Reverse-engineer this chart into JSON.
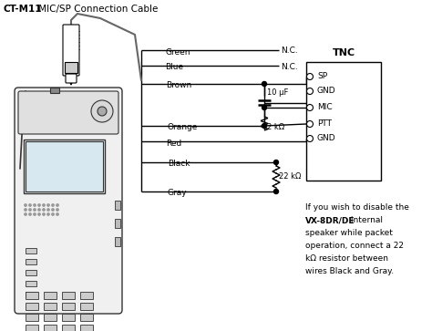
{
  "bg_color": "#ffffff",
  "line_color": "#000000",
  "text_color": "#000000",
  "title_bold": "CT-M11",
  "title_rest": " MIC/SP Connection Cable",
  "tnc_label": "TNC",
  "tnc_terminals": [
    "SP",
    "GND",
    "MIC",
    "PTT",
    "GND"
  ],
  "wire_labels": [
    "Green",
    "Blue",
    "Brown",
    "Orange",
    "Red",
    "Black",
    "Gray"
  ],
  "nc_label": "N.C.",
  "cap_label": "10 μF",
  "res1_label": "2 kΩ",
  "res2_label": "22 kΩ",
  "note_lines": [
    [
      "If you wish to disable the",
      false
    ],
    [
      "VX-8DR/DE",
      true,
      " internal",
      false
    ],
    [
      "speaker while packet",
      false
    ],
    [
      "operation, connect a 22",
      false
    ],
    [
      "kΩ resistor between",
      false
    ],
    [
      "wires Black and Gray.",
      false
    ]
  ]
}
